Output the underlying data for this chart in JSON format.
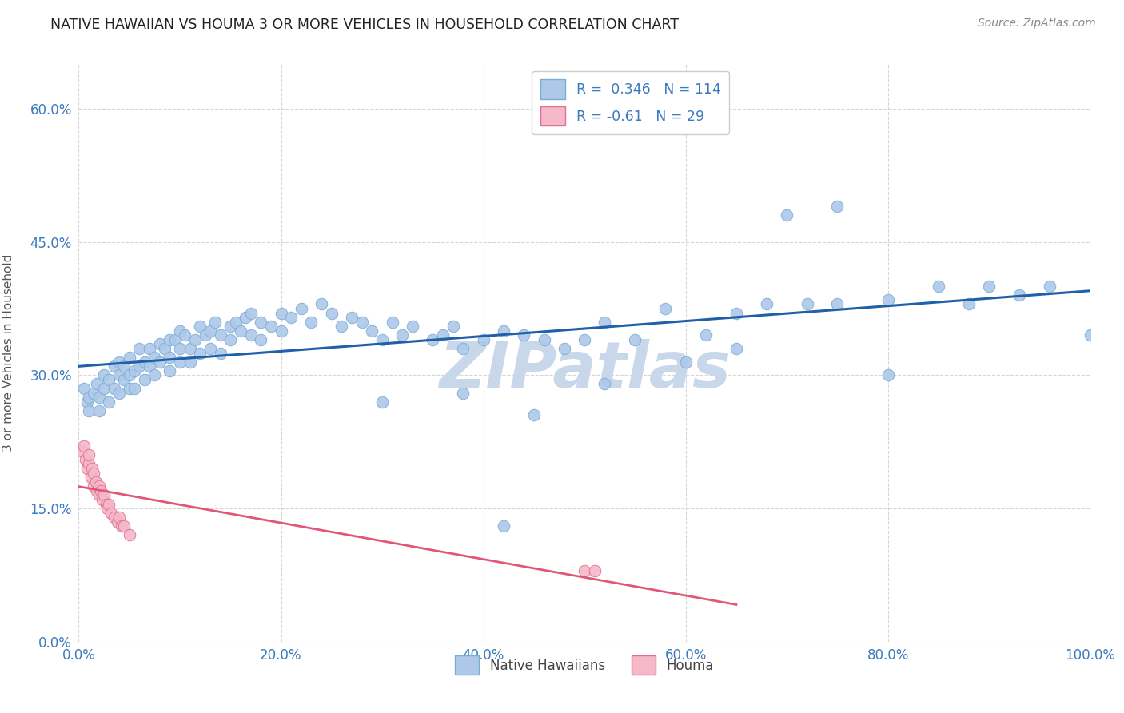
{
  "title": "NATIVE HAWAIIAN VS HOUMA 3 OR MORE VEHICLES IN HOUSEHOLD CORRELATION CHART",
  "source": "Source: ZipAtlas.com",
  "ylabel": "3 or more Vehicles in Household",
  "xmin": 0.0,
  "xmax": 1.0,
  "ymin": 0.0,
  "ymax": 0.65,
  "xticks": [
    0.0,
    0.2,
    0.4,
    0.6,
    0.8,
    1.0
  ],
  "xticklabels": [
    "0.0%",
    "20.0%",
    "40.0%",
    "60.0%",
    "80.0%",
    "100.0%"
  ],
  "yticks": [
    0.0,
    0.15,
    0.3,
    0.45,
    0.6
  ],
  "yticklabels": [
    "0.0%",
    "15.0%",
    "30.0%",
    "45.0%",
    "60.0%"
  ],
  "nh_R": 0.346,
  "nh_N": 114,
  "houma_R": -0.61,
  "houma_N": 29,
  "nh_color": "#adc8e8",
  "nh_edge": "#7aadd4",
  "houma_color": "#f5b8c8",
  "houma_edge": "#e07090",
  "line_nh_color": "#2060a8",
  "line_houma_color": "#e05878",
  "grid_color": "#cccccc",
  "bg_color": "#ffffff",
  "watermark": "ZIPatlas",
  "watermark_color": "#c8d8ea",
  "legend_label_nh": "Native Hawaiians",
  "legend_label_houma": "Houma",
  "nh_x": [
    0.005,
    0.008,
    0.01,
    0.01,
    0.015,
    0.018,
    0.02,
    0.02,
    0.025,
    0.025,
    0.03,
    0.03,
    0.035,
    0.035,
    0.04,
    0.04,
    0.04,
    0.045,
    0.045,
    0.05,
    0.05,
    0.05,
    0.055,
    0.055,
    0.06,
    0.06,
    0.065,
    0.065,
    0.07,
    0.07,
    0.075,
    0.075,
    0.08,
    0.08,
    0.085,
    0.09,
    0.09,
    0.09,
    0.095,
    0.1,
    0.1,
    0.1,
    0.105,
    0.11,
    0.11,
    0.115,
    0.12,
    0.12,
    0.125,
    0.13,
    0.13,
    0.135,
    0.14,
    0.14,
    0.15,
    0.15,
    0.155,
    0.16,
    0.165,
    0.17,
    0.17,
    0.18,
    0.18,
    0.19,
    0.2,
    0.2,
    0.21,
    0.22,
    0.23,
    0.24,
    0.25,
    0.26,
    0.27,
    0.28,
    0.29,
    0.3,
    0.31,
    0.32,
    0.33,
    0.35,
    0.36,
    0.37,
    0.38,
    0.4,
    0.42,
    0.44,
    0.46,
    0.48,
    0.5,
    0.52,
    0.55,
    0.58,
    0.62,
    0.65,
    0.68,
    0.72,
    0.75,
    0.8,
    0.85,
    0.88,
    0.9,
    0.93,
    0.96,
    1.0,
    0.7,
    0.75,
    0.52,
    0.6,
    0.65,
    0.8,
    0.42,
    0.38,
    0.45,
    0.3
  ],
  "nh_y": [
    0.285,
    0.27,
    0.275,
    0.26,
    0.28,
    0.29,
    0.275,
    0.26,
    0.3,
    0.285,
    0.295,
    0.27,
    0.31,
    0.285,
    0.3,
    0.28,
    0.315,
    0.295,
    0.31,
    0.3,
    0.285,
    0.32,
    0.305,
    0.285,
    0.31,
    0.33,
    0.315,
    0.295,
    0.33,
    0.31,
    0.32,
    0.3,
    0.335,
    0.315,
    0.33,
    0.34,
    0.32,
    0.305,
    0.34,
    0.33,
    0.35,
    0.315,
    0.345,
    0.33,
    0.315,
    0.34,
    0.355,
    0.325,
    0.345,
    0.35,
    0.33,
    0.36,
    0.345,
    0.325,
    0.355,
    0.34,
    0.36,
    0.35,
    0.365,
    0.345,
    0.37,
    0.36,
    0.34,
    0.355,
    0.37,
    0.35,
    0.365,
    0.375,
    0.36,
    0.38,
    0.37,
    0.355,
    0.365,
    0.36,
    0.35,
    0.34,
    0.36,
    0.345,
    0.355,
    0.34,
    0.345,
    0.355,
    0.33,
    0.34,
    0.35,
    0.345,
    0.34,
    0.33,
    0.34,
    0.36,
    0.34,
    0.375,
    0.345,
    0.37,
    0.38,
    0.38,
    0.38,
    0.385,
    0.4,
    0.38,
    0.4,
    0.39,
    0.4,
    0.345,
    0.48,
    0.49,
    0.29,
    0.315,
    0.33,
    0.3,
    0.13,
    0.28,
    0.255,
    0.27
  ],
  "houma_x": [
    0.003,
    0.005,
    0.007,
    0.008,
    0.01,
    0.01,
    0.012,
    0.013,
    0.015,
    0.015,
    0.017,
    0.018,
    0.02,
    0.02,
    0.022,
    0.023,
    0.025,
    0.027,
    0.028,
    0.03,
    0.032,
    0.035,
    0.038,
    0.04,
    0.042,
    0.045,
    0.05,
    0.5,
    0.51
  ],
  "houma_y": [
    0.215,
    0.22,
    0.205,
    0.195,
    0.2,
    0.21,
    0.185,
    0.195,
    0.19,
    0.175,
    0.18,
    0.17,
    0.175,
    0.165,
    0.17,
    0.16,
    0.165,
    0.155,
    0.15,
    0.155,
    0.145,
    0.14,
    0.135,
    0.14,
    0.13,
    0.13,
    0.12,
    0.08,
    0.08
  ],
  "houma_line_x0": 0.0,
  "houma_line_x1": 0.65
}
